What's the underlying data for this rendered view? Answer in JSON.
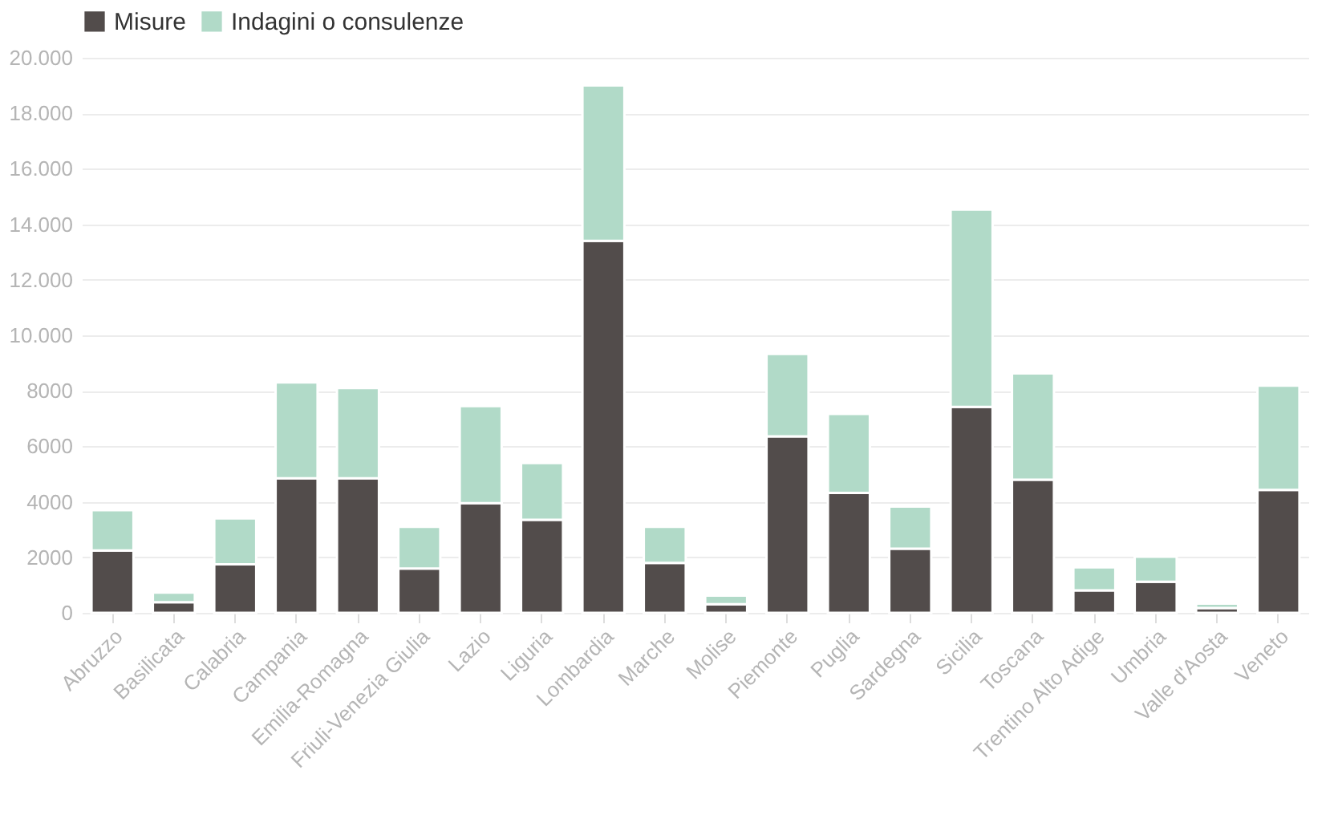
{
  "chart_data": {
    "type": "bar",
    "stacked": true,
    "categories": [
      "Abruzzo",
      "Basilicata",
      "Calabria",
      "Campania",
      "Emilia-Romagna",
      "Friuli-Venezia Giulia",
      "Lazio",
      "Liguria",
      "Lombardia",
      "Marche",
      "Molise",
      "Piemonte",
      "Puglia",
      "Sardegna",
      "Sicilia",
      "Toscana",
      "Trentino Alto Adige",
      "Umbria",
      "Valle d'Aosta",
      "Veneto"
    ],
    "series": [
      {
        "name": "Misure",
        "color": "#524c4b",
        "values": [
          2250,
          380,
          1750,
          4850,
          4850,
          1600,
          3950,
          3350,
          13400,
          1800,
          310,
          6360,
          4320,
          2310,
          7420,
          4800,
          810,
          1120,
          170,
          4430
        ]
      },
      {
        "name": "Indagini o consulenze",
        "color": "#b1dac8",
        "values": [
          1450,
          350,
          1650,
          3450,
          3250,
          1500,
          3500,
          2050,
          5600,
          1300,
          310,
          2970,
          2850,
          1520,
          7110,
          3830,
          830,
          900,
          160,
          3760
        ]
      }
    ],
    "ylim": [
      0,
      20000
    ],
    "yticks": [
      0,
      2000,
      4000,
      6000,
      8000,
      {
        "value": 10000,
        "label": "10.000"
      },
      {
        "value": 12000,
        "label": "12.000"
      },
      {
        "value": 14000,
        "label": "14.000"
      },
      {
        "value": 16000,
        "label": "16.000"
      },
      {
        "value": 18000,
        "label": "18.000"
      },
      {
        "value": 20000,
        "label": "20.000"
      }
    ],
    "grid": "y",
    "legend": "top left"
  }
}
